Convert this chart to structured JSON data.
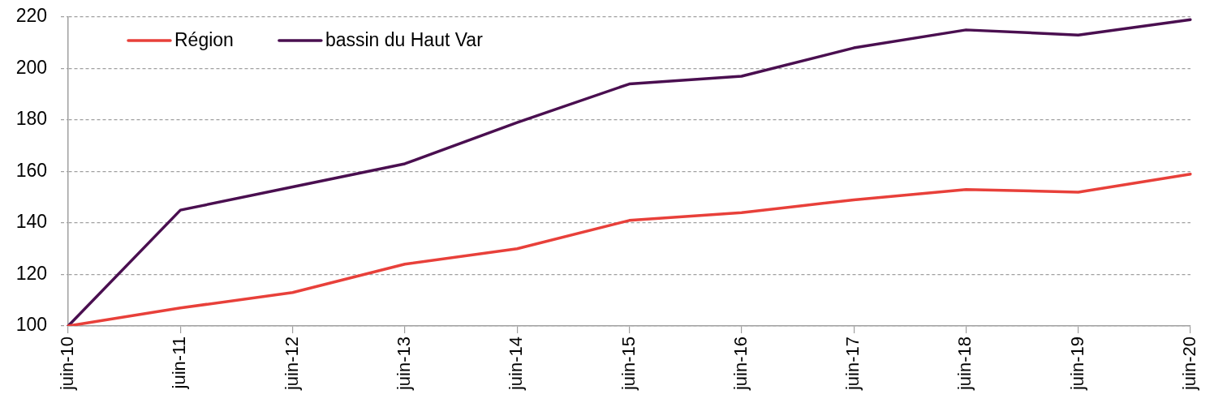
{
  "chart_data": {
    "type": "line",
    "categories": [
      "juin-10",
      "juin-11",
      "juin-12",
      "juin-13",
      "juin-14",
      "juin-15",
      "juin-16",
      "juin-17",
      "juin-18",
      "juin-19",
      "juin-20"
    ],
    "series": [
      {
        "name": "Région",
        "color": "#e8403a",
        "values": [
          100,
          107,
          113,
          124,
          130,
          141,
          144,
          149,
          153,
          152,
          159
        ]
      },
      {
        "name": "bassin du Haut Var",
        "color": "#4a0f50",
        "values": [
          100,
          145,
          154,
          163,
          179,
          194,
          197,
          208,
          215,
          213,
          219
        ]
      }
    ],
    "ylim": [
      100,
      220
    ],
    "yticks": [
      100,
      120,
      140,
      160,
      180,
      200,
      220
    ],
    "grid": "y",
    "legend": "top left"
  }
}
